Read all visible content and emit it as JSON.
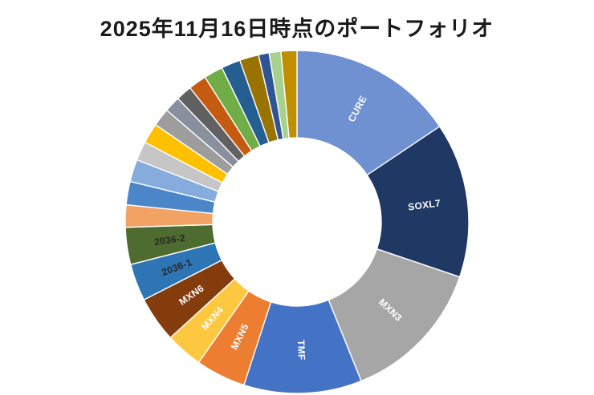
{
  "chart_data": {
    "type": "pie",
    "subtype": "donut",
    "title": "2025年11月16日時点のポートフォリオ",
    "legend_position": "none",
    "start_angle_deg": 0,
    "direction": "clockwise",
    "inner_radius_ratio": 0.49,
    "background_color": "#ffffff",
    "slice_border_color": "#ffffff",
    "slices": [
      {
        "label": "CURE",
        "value_pct": 15.6,
        "color": "#6F90D1",
        "label_color": "#ffffff"
      },
      {
        "label": "SOXL7",
        "value_pct": 14.6,
        "color": "#1F3864",
        "label_color": "#ffffff"
      },
      {
        "label": "MXN3",
        "value_pct": 13.7,
        "color": "#A6A6A6",
        "label_color": "#ffffff"
      },
      {
        "label": "TMF",
        "value_pct": 11.1,
        "color": "#4472C4",
        "label_color": "#ffffff"
      },
      {
        "label": "MXN5",
        "value_pct": 4.7,
        "color": "#ED7D31",
        "label_color": "#ffffff"
      },
      {
        "label": "MXN4",
        "value_pct": 3.5,
        "color": "#FDC740",
        "label_color": "#ffffff"
      },
      {
        "label": "MXN6",
        "value_pct": 4.3,
        "color": "#843C0C",
        "label_color": "#ffffff"
      },
      {
        "label": "2036-1",
        "value_pct": 3.5,
        "color": "#2E75B6",
        "label_color": "#262626"
      },
      {
        "label": "2036-2",
        "value_pct": 3.5,
        "color": "#4E6B30",
        "label_color": "#262626"
      },
      {
        "label": "",
        "value_pct": 2.1,
        "color": "#F2A262"
      },
      {
        "label": "",
        "value_pct": 2.2,
        "color": "#4A86C8"
      },
      {
        "label": "",
        "value_pct": 2.1,
        "color": "#85ACDC"
      },
      {
        "label": "",
        "value_pct": 1.8,
        "color": "#C6C6C6"
      },
      {
        "label": "",
        "value_pct": 1.9,
        "color": "#FFC000"
      },
      {
        "label": "",
        "value_pct": 1.7,
        "color": "#9D9D9D"
      },
      {
        "label": "",
        "value_pct": 1.5,
        "color": "#87909C"
      },
      {
        "label": "",
        "value_pct": 1.5,
        "color": "#616161"
      },
      {
        "label": "",
        "value_pct": 1.7,
        "color": "#C55A11"
      },
      {
        "label": "",
        "value_pct": 1.8,
        "color": "#70AD47"
      },
      {
        "label": "",
        "value_pct": 1.8,
        "color": "#255E91"
      },
      {
        "label": "",
        "value_pct": 1.8,
        "color": "#997300"
      },
      {
        "label": "",
        "value_pct": 1.0,
        "color": "#2F5597"
      },
      {
        "label": "",
        "value_pct": 1.1,
        "color": "#A9D18E"
      },
      {
        "label": "",
        "value_pct": 1.5,
        "color": "#BF8F00"
      }
    ]
  }
}
